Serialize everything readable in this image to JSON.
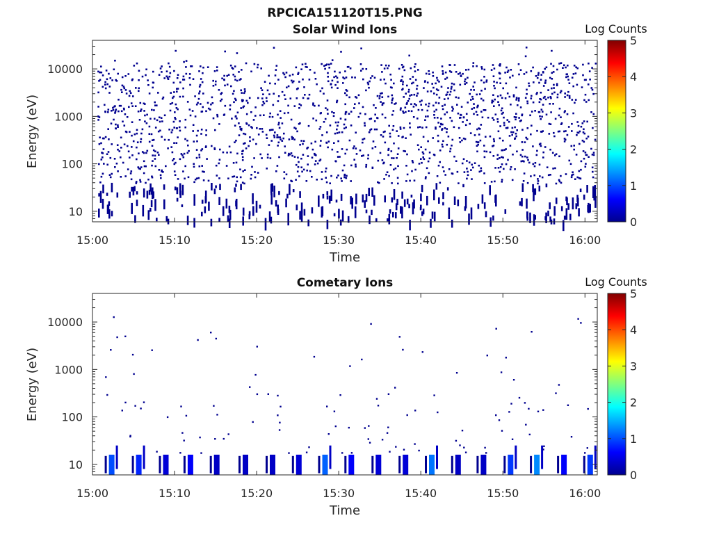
{
  "figure_title": "RPCICA151120T15.PNG",
  "chart_data": [
    {
      "type": "heatmap",
      "title": "Solar Wind Ions",
      "xlabel": "Time",
      "ylabel": "Energy (eV)",
      "x_ticks": [
        "15:00",
        "15:10",
        "15:20",
        "15:30",
        "15:40",
        "15:50",
        "16:00"
      ],
      "xlim_minutes": [
        0,
        61.5
      ],
      "y_scale": "log",
      "y_ticks": [
        "10",
        "100",
        "1000",
        "10000"
      ],
      "ylim": [
        6,
        40000
      ],
      "colorbar_label": "Log Counts",
      "colorbar_ticks": [
        "0",
        "1",
        "2",
        "3",
        "4",
        "5"
      ],
      "clim": [
        0,
        5
      ],
      "description_of_values": "Scattered low counts (log counts ~0, dark blue) across all energies 10 eV - 30 keV throughout 15:00-16:00",
      "features": [
        {
          "t_min": 2.0,
          "energy_range": [
            6,
            30000
          ],
          "log_counts": 0
        },
        {
          "t_min": 8.5,
          "energy_range": [
            6,
            12000
          ],
          "log_counts": 0
        },
        {
          "t_min": 18.0,
          "energy_range": [
            6,
            30000
          ],
          "log_counts": 0
        },
        {
          "t_min": 27.0,
          "energy_range": [
            6,
            25000
          ],
          "log_counts": 0
        },
        {
          "t_min": 38.0,
          "energy_range": [
            6,
            28000
          ],
          "log_counts": 0
        },
        {
          "t_min": 50.0,
          "energy_range": [
            6,
            12000
          ],
          "log_counts": 0
        },
        {
          "t_min": 60.0,
          "energy_range": [
            6,
            12000
          ],
          "log_counts": 0
        }
      ]
    },
    {
      "type": "heatmap",
      "title": "Cometary Ions",
      "xlabel": "Time",
      "ylabel": "Energy (eV)",
      "x_ticks": [
        "15:00",
        "15:10",
        "15:20",
        "15:30",
        "15:40",
        "15:50",
        "16:00"
      ],
      "xlim_minutes": [
        0,
        61.5
      ],
      "y_scale": "log",
      "y_ticks": [
        "10",
        "100",
        "1000",
        "10000"
      ],
      "ylim": [
        6,
        40000
      ],
      "colorbar_label": "Log Counts",
      "colorbar_ticks": [
        "0",
        "1",
        "2",
        "3",
        "4",
        "5"
      ],
      "clim": [
        0,
        5
      ],
      "low_energy_bursts": [
        {
          "t_min": 2.0,
          "log_counts": 1.0
        },
        {
          "t_min": 5.3,
          "log_counts": 0.8
        },
        {
          "t_min": 8.6,
          "log_counts": 0.4
        },
        {
          "t_min": 11.6,
          "log_counts": 0.6
        },
        {
          "t_min": 14.8,
          "log_counts": 0.3
        },
        {
          "t_min": 18.3,
          "log_counts": 0.3
        },
        {
          "t_min": 21.6,
          "log_counts": 0.3
        },
        {
          "t_min": 24.8,
          "log_counts": 0.4
        },
        {
          "t_min": 28.0,
          "log_counts": 1.1
        },
        {
          "t_min": 31.2,
          "log_counts": 0.6
        },
        {
          "t_min": 34.5,
          "log_counts": 0.4
        },
        {
          "t_min": 37.8,
          "log_counts": 0.4
        },
        {
          "t_min": 41.0,
          "log_counts": 1.2
        },
        {
          "t_min": 44.2,
          "log_counts": 0.3
        },
        {
          "t_min": 47.3,
          "log_counts": 0.3
        },
        {
          "t_min": 50.6,
          "log_counts": 0.9
        },
        {
          "t_min": 53.8,
          "log_counts": 1.3
        },
        {
          "t_min": 57.1,
          "log_counts": 0.6
        },
        {
          "t_min": 60.3,
          "log_counts": 0.9
        }
      ]
    }
  ]
}
